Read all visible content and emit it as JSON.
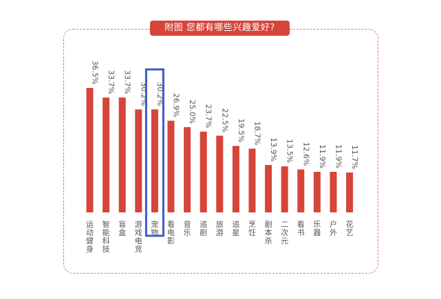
{
  "chart_data": {
    "type": "bar",
    "title": "附图 您都有哪些兴趣爱好?",
    "categories": [
      "运动健身",
      "智能科技",
      "盲盒",
      "游戏电竞",
      "宠物",
      "看电影",
      "音乐",
      "追剧",
      "旅游",
      "追星",
      "烹饪",
      "剧本杀",
      "二次元",
      "看书",
      "乐器",
      "户外",
      "花艺"
    ],
    "values": [
      36.5,
      33.7,
      33.7,
      30.2,
      30.2,
      26.9,
      25.0,
      23.7,
      22.5,
      19.5,
      18.7,
      13.9,
      13.5,
      12.6,
      11.9,
      11.9,
      11.7
    ],
    "value_labels": [
      "36.5%",
      "33.7%",
      "33.7%",
      "30.2%",
      "30.2%",
      "26.9%",
      "25.0%",
      "23.7%",
      "22.5%",
      "19.5%",
      "18.7%",
      "13.9%",
      "13.5%",
      "12.6%",
      "11.9%",
      "11.9%",
      "11.7%"
    ],
    "ylim": [
      0,
      40
    ],
    "highlighted_category": "宠物",
    "bar_color": "#d6443a",
    "highlight_color": "#3a5bc7",
    "frame_color": "#e5726c",
    "grid": false
  }
}
